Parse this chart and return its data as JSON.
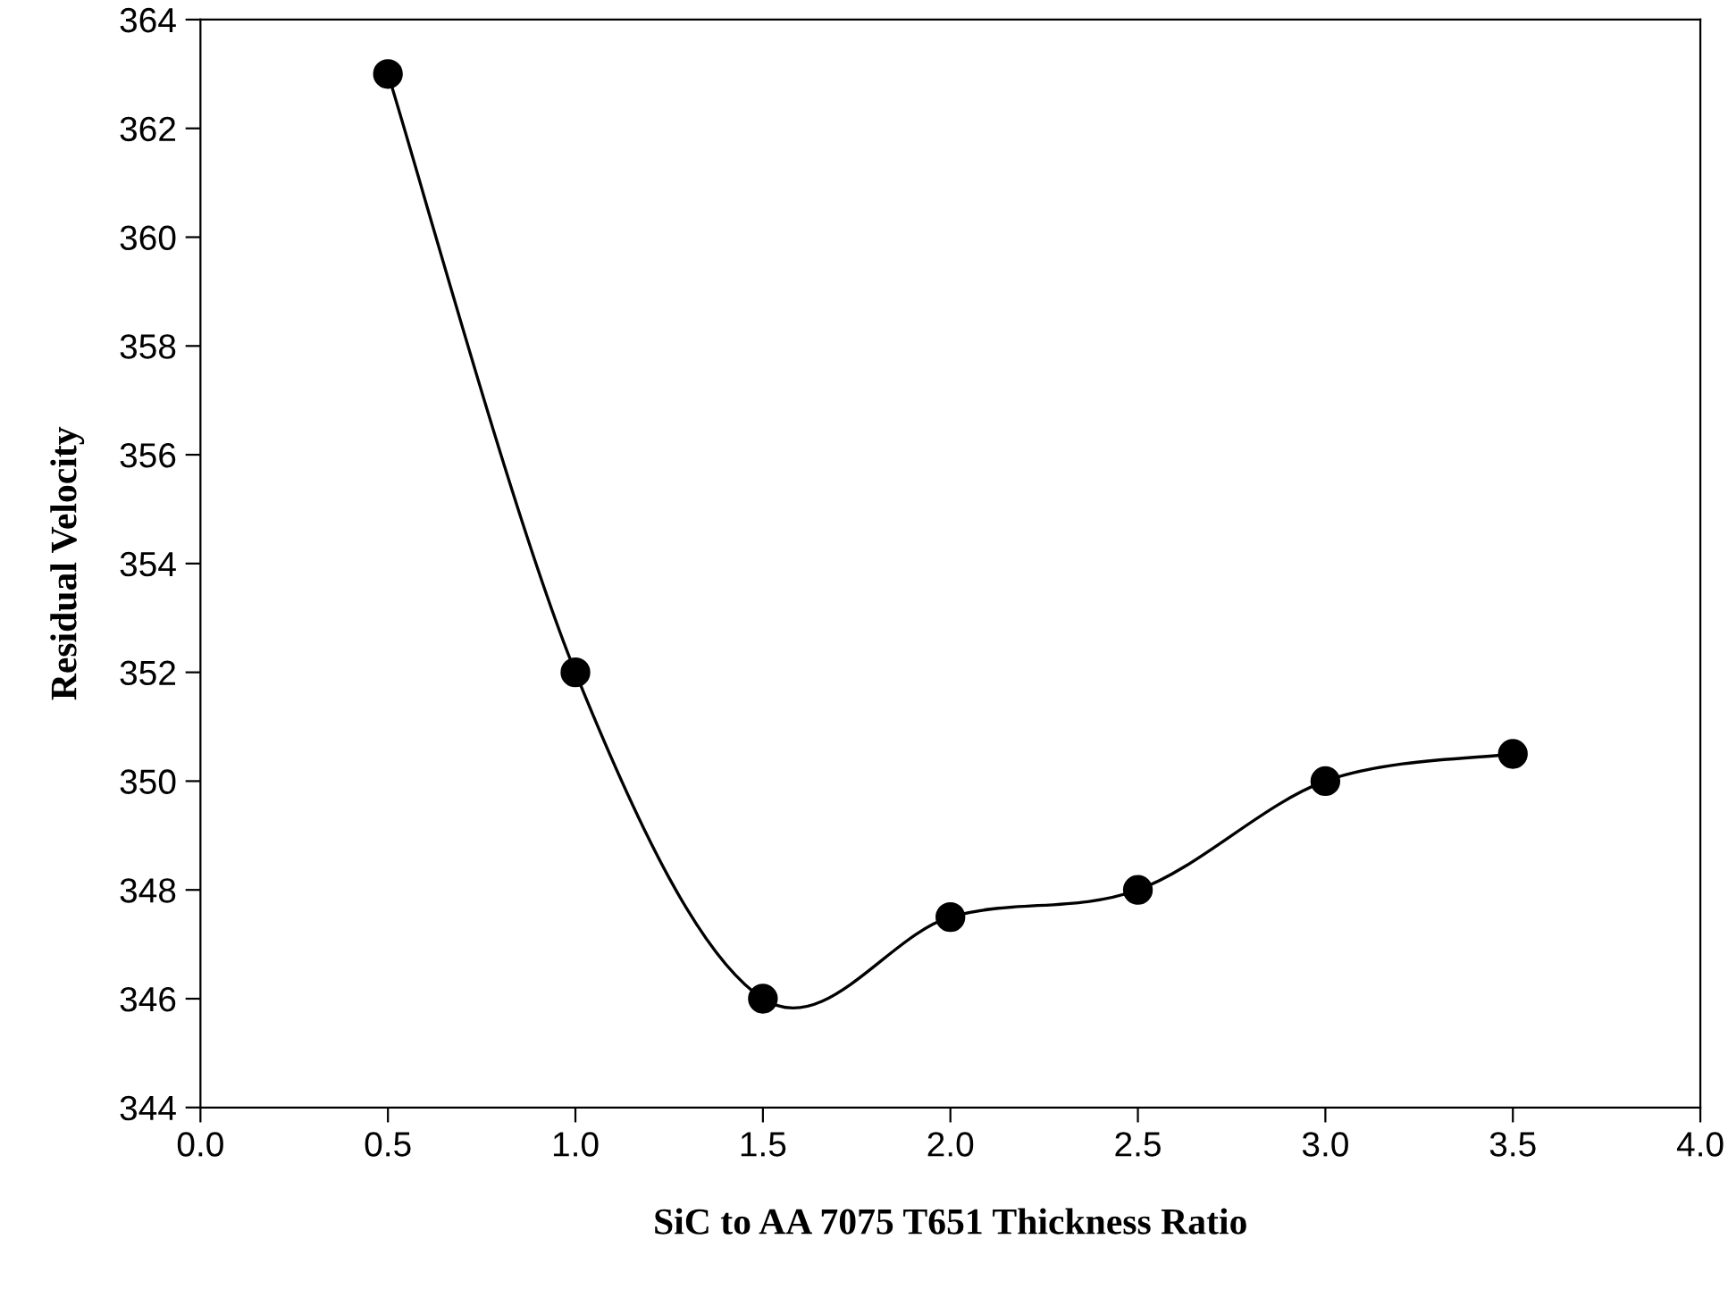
{
  "chart_data": {
    "type": "line",
    "xlabel": "SiC to AA 7075 T651 Thickness Ratio",
    "ylabel": "Residual Velocity",
    "x": [
      0.5,
      1.0,
      1.5,
      2.0,
      2.5,
      3.0,
      3.5
    ],
    "series": [
      {
        "color": "#000000",
        "values": [
          363,
          352,
          346,
          347.5,
          348,
          350,
          350.5
        ]
      }
    ],
    "xlim": [
      0,
      4
    ],
    "xticks": [
      {
        "value": 0,
        "label": "0.0"
      },
      {
        "value": 0.5,
        "label": "0.5"
      },
      {
        "value": 1,
        "label": "1.0"
      },
      {
        "value": 1.5,
        "label": "1.5"
      },
      {
        "value": 2,
        "label": "2.0"
      },
      {
        "value": 2.5,
        "label": "2.5"
      },
      {
        "value": 3,
        "label": "3.0"
      },
      {
        "value": 3.5,
        "label": "3.5"
      },
      {
        "value": 4,
        "label": "4.0"
      }
    ],
    "ylim": [
      344,
      364
    ],
    "yticks": [
      344,
      346,
      348,
      350,
      352,
      354,
      356,
      358,
      360,
      362,
      364
    ],
    "marker": "circle",
    "line_style": "solid",
    "grid": false,
    "legend": false
  }
}
